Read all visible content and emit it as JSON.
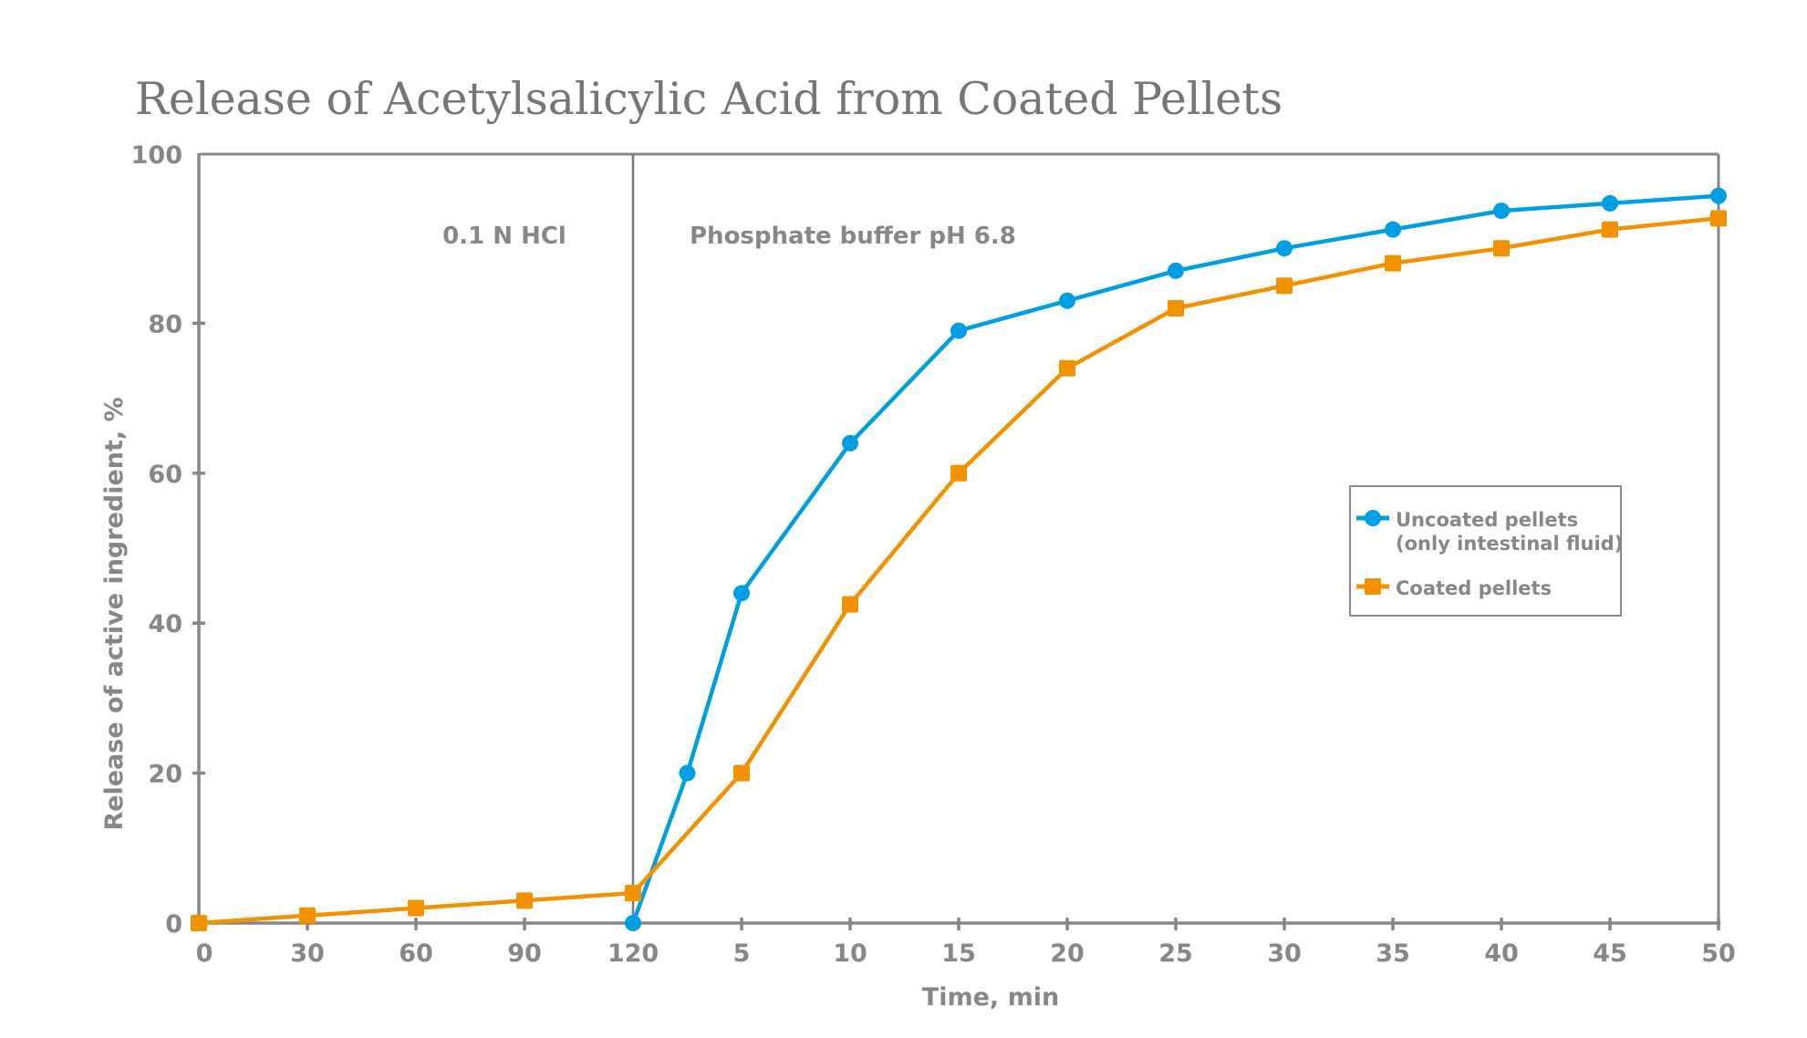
{
  "chart_data": {
    "type": "line",
    "title": "Release of Acetylsalicylic Acid from Coated Pellets",
    "xlabel": "Time, min",
    "ylabel": "Release of active ingredient, %",
    "ylim": [
      0,
      100
    ],
    "yticks": [
      0,
      20,
      40,
      60,
      80,
      100
    ],
    "grid": false,
    "x_phases": [
      {
        "name": "0.1 N HCl",
        "ticks": [
          0,
          30,
          60,
          90,
          120
        ],
        "step": 30
      },
      {
        "name": "Phosphate buffer pH 6.8",
        "ticks": [
          5,
          10,
          15,
          20,
          25,
          30,
          35,
          40,
          45,
          50
        ],
        "step": 5
      }
    ],
    "xtick_labels": [
      "0",
      "30",
      "60",
      "90",
      "120",
      "5",
      "10",
      "15",
      "20",
      "25",
      "30",
      "35",
      "40",
      "45",
      "50"
    ],
    "annotations": [
      {
        "text": "0.1 N HCl",
        "region": "acid phase (0–120 min)"
      },
      {
        "text": "Phosphate buffer pH 6.8",
        "region": "buffer phase (0–50 min)"
      }
    ],
    "legend": {
      "placement": "right-middle",
      "entries": [
        {
          "lines": [
            "Uncoated pellets",
            "(only intestinal fluid)"
          ],
          "series": "uncoated"
        },
        {
          "lines": [
            "Coated pellets"
          ],
          "series": "coated"
        }
      ]
    },
    "series": [
      {
        "id": "uncoated",
        "name": "Uncoated pellets (only intestinal fluid)",
        "color": "#009FE3",
        "marker": "circle",
        "points": [
          {
            "phase": 1,
            "t": 0,
            "y": 0
          },
          {
            "phase": 1,
            "t": 2.5,
            "y": 20
          },
          {
            "phase": 1,
            "t": 5,
            "y": 44
          },
          {
            "phase": 1,
            "t": 10,
            "y": 64
          },
          {
            "phase": 1,
            "t": 15,
            "y": 79
          },
          {
            "phase": 1,
            "t": 20,
            "y": 83
          },
          {
            "phase": 1,
            "t": 25,
            "y": 87
          },
          {
            "phase": 1,
            "t": 30,
            "y": 90
          },
          {
            "phase": 1,
            "t": 35,
            "y": 92.5
          },
          {
            "phase": 1,
            "t": 40,
            "y": 95
          },
          {
            "phase": 1,
            "t": 45,
            "y": 96
          },
          {
            "phase": 1,
            "t": 50,
            "y": 97
          }
        ]
      },
      {
        "id": "coated",
        "name": "Coated pellets",
        "color": "#F39200",
        "marker": "square",
        "points": [
          {
            "phase": 0,
            "t": 0,
            "y": 0
          },
          {
            "phase": 0,
            "t": 30,
            "y": 1
          },
          {
            "phase": 0,
            "t": 60,
            "y": 2
          },
          {
            "phase": 0,
            "t": 90,
            "y": 3
          },
          {
            "phase": 0,
            "t": 120,
            "y": 4
          },
          {
            "phase": 1,
            "t": 5,
            "y": 20
          },
          {
            "phase": 1,
            "t": 10,
            "y": 42.5
          },
          {
            "phase": 1,
            "t": 15,
            "y": 60
          },
          {
            "phase": 1,
            "t": 20,
            "y": 74
          },
          {
            "phase": 1,
            "t": 25,
            "y": 82
          },
          {
            "phase": 1,
            "t": 30,
            "y": 85
          },
          {
            "phase": 1,
            "t": 35,
            "y": 88
          },
          {
            "phase": 1,
            "t": 40,
            "y": 90
          },
          {
            "phase": 1,
            "t": 45,
            "y": 92.5
          },
          {
            "phase": 1,
            "t": 50,
            "y": 94
          }
        ]
      }
    ],
    "colors": {
      "axis": "#878787",
      "text": "#878787",
      "title": "#767676"
    }
  }
}
